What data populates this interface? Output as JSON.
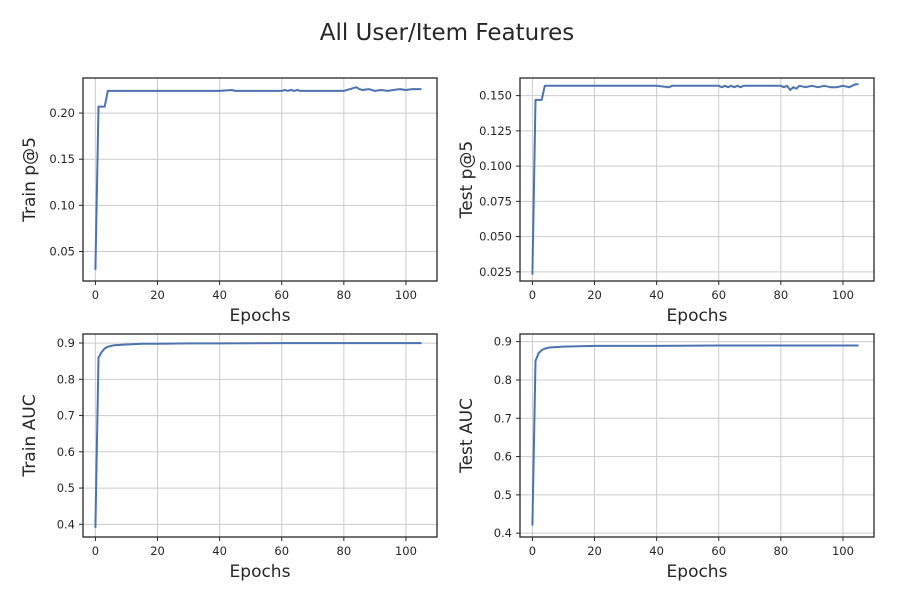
{
  "figure": {
    "title": "All User/Item Features"
  },
  "chart_data": [
    {
      "type": "line",
      "xlabel": "Epochs",
      "ylabel": "Train p@5",
      "xlim": [
        -4,
        110
      ],
      "ylim": [
        0.018,
        0.238
      ],
      "xticks": [
        0,
        20,
        40,
        60,
        80,
        100
      ],
      "yticks": [
        0.05,
        0.1,
        0.15,
        0.2
      ],
      "ytick_labels": [
        "0.05",
        "0.10",
        "0.15",
        "0.20"
      ],
      "grid": true,
      "color": "#4c72b0",
      "series": [
        {
          "x": [
            0,
            1,
            2,
            3,
            4,
            10,
            20,
            30,
            40,
            44,
            45,
            46,
            50,
            60,
            61,
            62,
            63,
            64,
            65,
            66,
            70,
            80,
            82,
            84,
            85,
            86,
            88,
            90,
            92,
            94,
            96,
            98,
            100,
            102,
            104,
            105
          ],
          "y": [
            0.03,
            0.207,
            0.207,
            0.207,
            0.224,
            0.224,
            0.224,
            0.224,
            0.224,
            0.225,
            0.224,
            0.224,
            0.224,
            0.224,
            0.225,
            0.224,
            0.225,
            0.224,
            0.225,
            0.224,
            0.224,
            0.224,
            0.226,
            0.228,
            0.226,
            0.225,
            0.226,
            0.224,
            0.225,
            0.224,
            0.225,
            0.226,
            0.225,
            0.226,
            0.226,
            0.226
          ]
        }
      ]
    },
    {
      "type": "line",
      "xlabel": "Epochs",
      "ylabel": "Test p@5",
      "xlim": [
        -4,
        110
      ],
      "ylim": [
        0.0185,
        0.1625
      ],
      "xticks": [
        0,
        20,
        40,
        60,
        80,
        100
      ],
      "yticks": [
        0.025,
        0.05,
        0.075,
        0.1,
        0.125,
        0.15
      ],
      "ytick_labels": [
        "0.025",
        "0.050",
        "0.075",
        "0.100",
        "0.125",
        "0.150"
      ],
      "grid": true,
      "color": "#4c72b0",
      "series": [
        {
          "x": [
            0,
            1,
            2,
            3,
            4,
            10,
            20,
            30,
            40,
            44,
            45,
            50,
            60,
            61,
            62,
            63,
            64,
            65,
            66,
            67,
            68,
            70,
            75,
            80,
            81,
            82,
            83,
            84,
            85,
            86,
            88,
            90,
            92,
            94,
            96,
            98,
            100,
            102,
            104,
            105
          ],
          "y": [
            0.023,
            0.147,
            0.147,
            0.147,
            0.157,
            0.157,
            0.157,
            0.157,
            0.157,
            0.156,
            0.157,
            0.157,
            0.157,
            0.156,
            0.157,
            0.156,
            0.157,
            0.156,
            0.157,
            0.156,
            0.157,
            0.157,
            0.157,
            0.157,
            0.156,
            0.157,
            0.154,
            0.156,
            0.155,
            0.157,
            0.156,
            0.157,
            0.156,
            0.157,
            0.156,
            0.156,
            0.157,
            0.156,
            0.158,
            0.158
          ]
        }
      ]
    },
    {
      "type": "line",
      "xlabel": "Epochs",
      "ylabel": "Train AUC",
      "xlim": [
        -4,
        110
      ],
      "ylim": [
        0.365,
        0.925
      ],
      "xticks": [
        0,
        20,
        40,
        60,
        80,
        100
      ],
      "yticks": [
        0.4,
        0.5,
        0.6,
        0.7,
        0.8,
        0.9
      ],
      "ytick_labels": [
        "0.4",
        "0.5",
        "0.6",
        "0.7",
        "0.8",
        "0.9"
      ],
      "grid": true,
      "color": "#4c72b0",
      "series": [
        {
          "x": [
            0,
            1,
            2,
            3,
            4,
            5,
            6,
            8,
            10,
            15,
            20,
            30,
            40,
            60,
            80,
            100,
            105
          ],
          "y": [
            0.39,
            0.86,
            0.875,
            0.885,
            0.89,
            0.892,
            0.894,
            0.895,
            0.896,
            0.898,
            0.898,
            0.899,
            0.899,
            0.9,
            0.9,
            0.9,
            0.9
          ]
        }
      ]
    },
    {
      "type": "line",
      "xlabel": "Epochs",
      "ylabel": "Test AUC",
      "xlim": [
        -4,
        110
      ],
      "ylim": [
        0.39,
        0.92
      ],
      "xticks": [
        0,
        20,
        40,
        60,
        80,
        100
      ],
      "yticks": [
        0.4,
        0.5,
        0.6,
        0.7,
        0.8,
        0.9
      ],
      "ytick_labels": [
        "0.4",
        "0.5",
        "0.6",
        "0.7",
        "0.8",
        "0.9"
      ],
      "grid": true,
      "color": "#4c72b0",
      "series": [
        {
          "x": [
            0,
            1,
            2,
            3,
            4,
            5,
            6,
            8,
            10,
            15,
            20,
            30,
            40,
            60,
            80,
            100,
            105
          ],
          "y": [
            0.42,
            0.85,
            0.87,
            0.878,
            0.882,
            0.884,
            0.885,
            0.886,
            0.887,
            0.888,
            0.889,
            0.889,
            0.889,
            0.89,
            0.89,
            0.89,
            0.89
          ]
        }
      ]
    }
  ]
}
